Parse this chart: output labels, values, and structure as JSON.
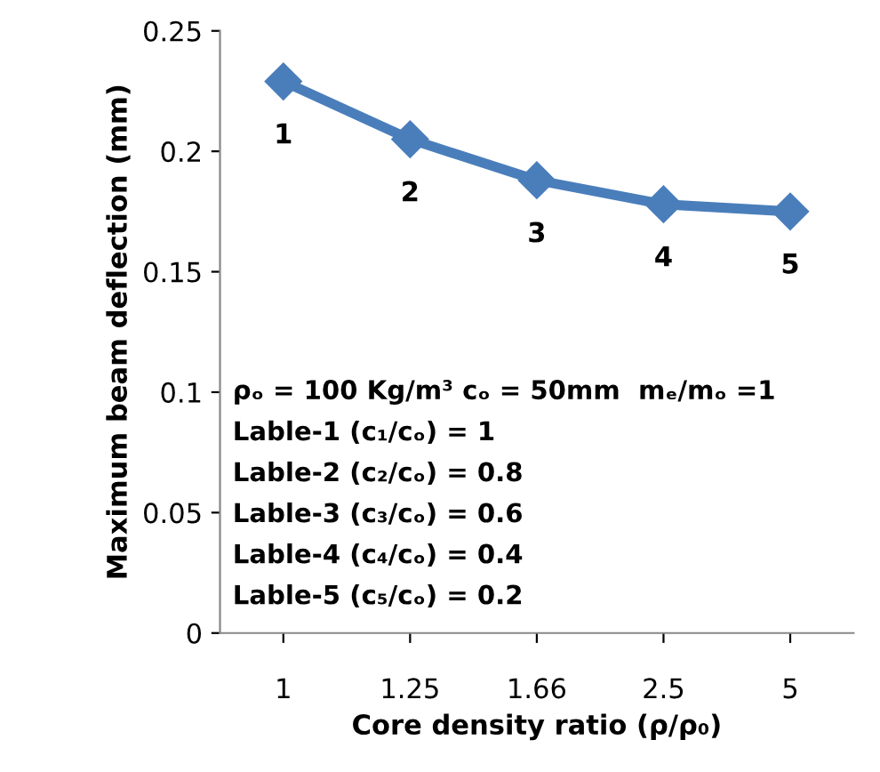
{
  "chart_data": {
    "type": "line",
    "xlabel": "Core density ratio (ρ/ρ₀)",
    "ylabel": "Maximum beam deflection (mm)",
    "categories": [
      "1",
      "1.25",
      "1.66",
      "2.5",
      "5"
    ],
    "series": [
      {
        "color": "#4a7ebb",
        "values": [
          0.229,
          0.205,
          0.188,
          0.178,
          0.175
        ]
      }
    ],
    "ylim": [
      0,
      0.25
    ],
    "yticks": [
      0,
      0.05,
      0.1,
      0.15,
      0.2,
      0.25
    ],
    "grid": false,
    "legend": false,
    "marker": "diamond",
    "line_style": "solid",
    "annotations": [
      {
        "text": "1",
        "x": "1",
        "y": 0.229
      },
      {
        "text": "2",
        "x": "1.25",
        "y": 0.205
      },
      {
        "text": "3",
        "x": "1.66",
        "y": 0.188
      },
      {
        "text": "4",
        "x": "2.5",
        "y": 0.178
      },
      {
        "text": "5",
        "x": "5",
        "y": 0.175
      },
      "ρₒ = 100 Kg/m³ cₒ = 50mm  mₑ/mₒ =1",
      "Lable-1 (c₁/cₒ) = 1",
      "Lable-2 (c₂/cₒ) = 0.8",
      "Lable-3 (c₃/cₒ) = 0.6",
      "Lable-4 (c₄/cₒ) = 0.4",
      "Lable-5 (c₅/cₒ) = 0.2"
    ]
  }
}
